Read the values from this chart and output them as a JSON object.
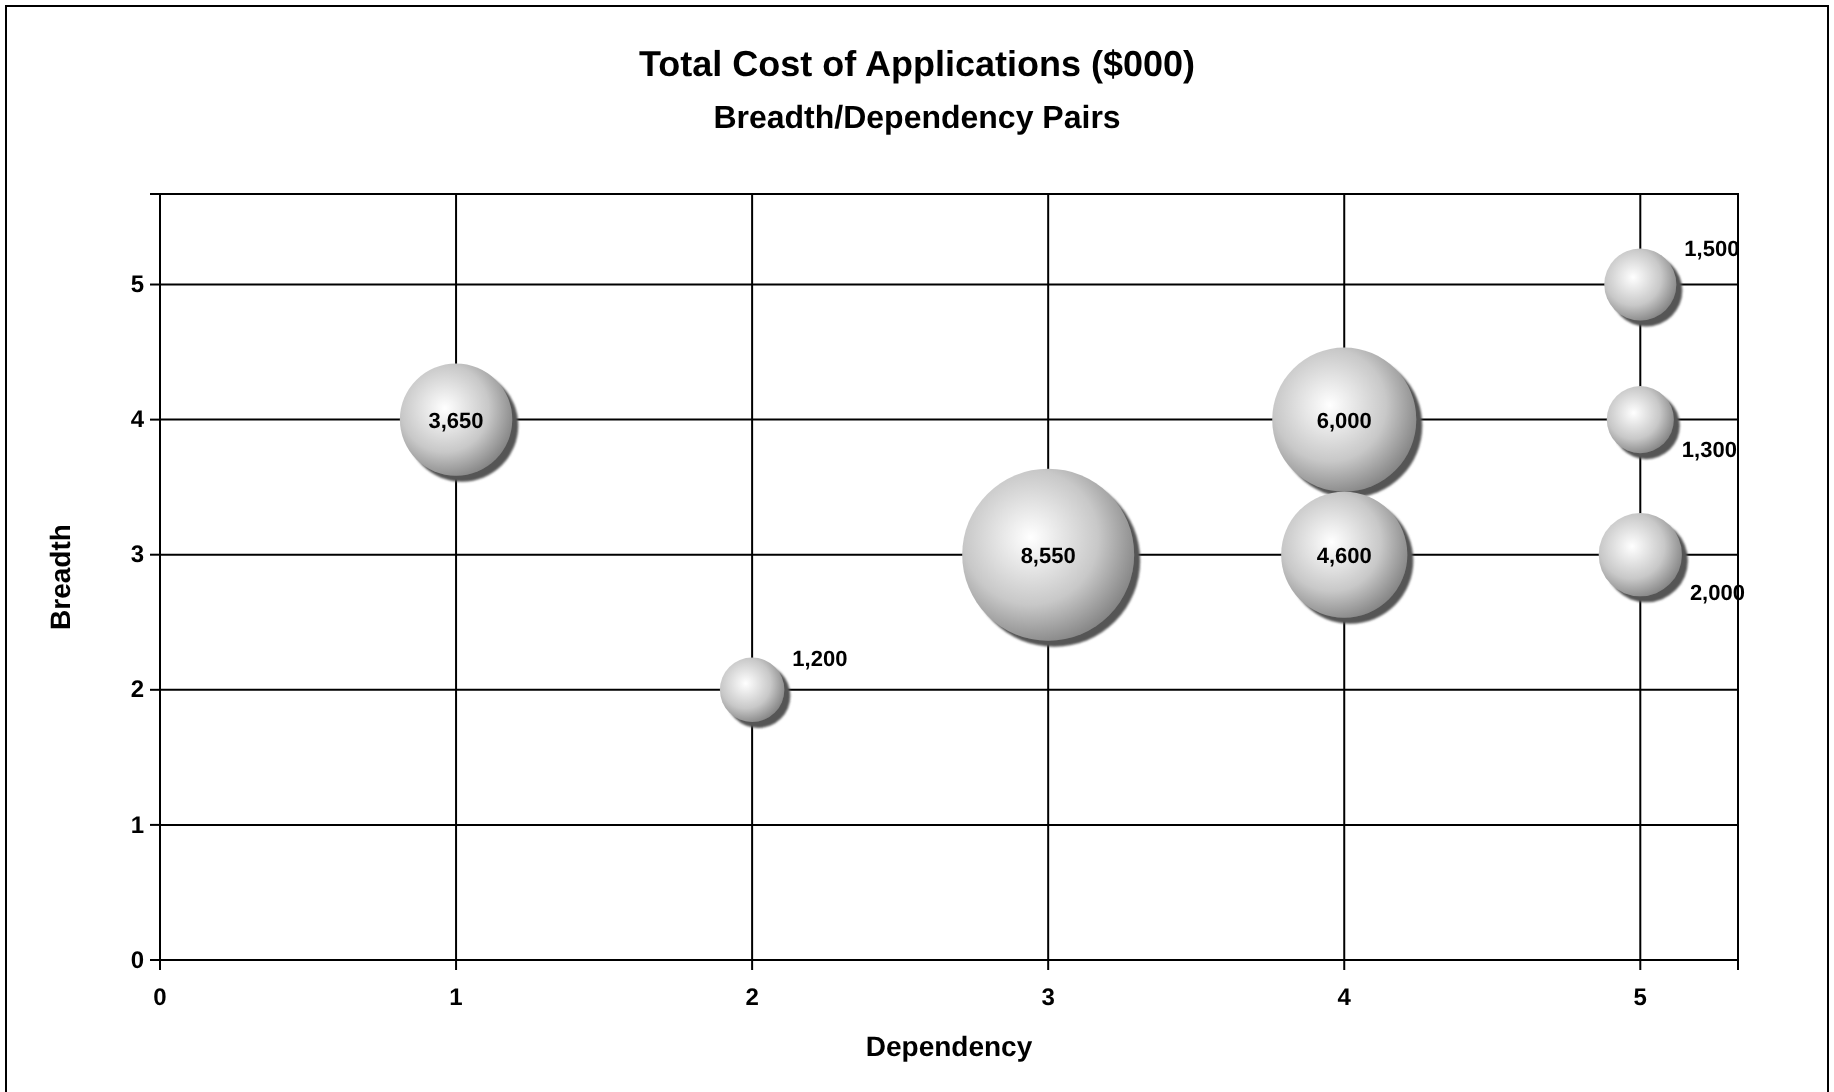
{
  "chart_data": {
    "type": "bubble",
    "title": "Total Cost of Applications ($000)",
    "subtitle": "Breadth/Dependency Pairs",
    "xlabel": "Dependency",
    "ylabel": "Breadth",
    "x": [
      1,
      2,
      3,
      4,
      4,
      5,
      5,
      5
    ],
    "series": [
      {
        "color": "#c8c8c8",
        "values": [
          4,
          2,
          3,
          4,
          3,
          5,
          4,
          3
        ],
        "sizes": [
          3650,
          1200,
          8550,
          6000,
          4600,
          1500,
          1300,
          2000
        ],
        "value_labels": [
          "3,650",
          "1,200",
          "8,550",
          "6,000",
          "4,600",
          "1,500",
          "1,300",
          "2,000"
        ]
      }
    ],
    "xlim": [
      0,
      5.33
    ],
    "xticks": [
      0,
      1,
      2,
      3,
      4,
      5
    ],
    "ylim": [
      0,
      5.67
    ],
    "yticks": [
      0,
      1,
      2,
      3,
      4,
      5
    ],
    "grid": true
  }
}
